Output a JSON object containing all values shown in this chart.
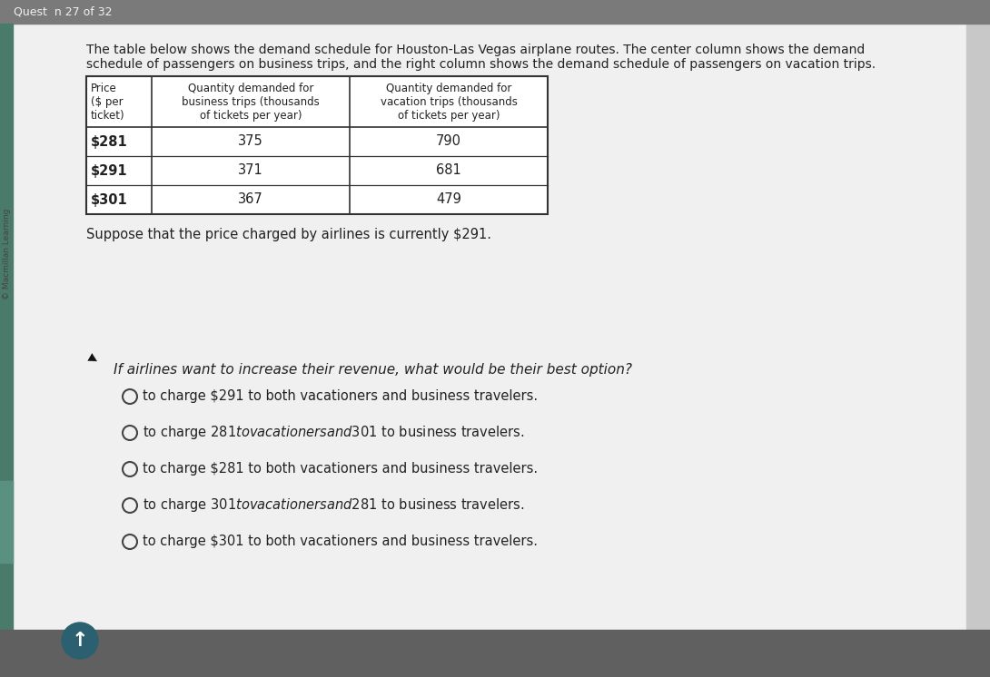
{
  "bg_outer_color": "#9a9a9a",
  "bg_content_color": "#e8e8e8",
  "white_panel_color": "#f0f0f0",
  "top_bar_color": "#7a7a7a",
  "question_num": "Quest  n 27 of 32",
  "paragraph_line1": "The table below shows the demand schedule for Houston-Las Vegas airplane routes. The center column shows the demand",
  "paragraph_line2": "schedule of passengers on business trips, and the right column shows the demand schedule of passengers on vacation trips.",
  "table_headers_col0": [
    "Price",
    "($ per",
    "ticket)"
  ],
  "table_headers_col1": [
    "Quantity demanded for",
    "business trips (thousands",
    "of tickets per year)"
  ],
  "table_headers_col2": [
    "Quantity demanded for",
    "vacation trips (thousands",
    "of tickets per year)"
  ],
  "table_rows": [
    [
      "$281",
      "375",
      "790"
    ],
    [
      "$291",
      "371",
      "681"
    ],
    [
      "$301",
      "367",
      "479"
    ]
  ],
  "suppose_text": "Suppose that the price charged by airlines is currently $291.",
  "question_text": "If airlines want to increase their revenue, what would be their best option?",
  "options": [
    "to charge $291 to both vacationers and business travelers.",
    "to charge $281 to vacationers and $301 to business travelers.",
    "to charge $281 to both vacationers and business travelers.",
    "to charge $301 to vacationers and $281 to business travelers.",
    "to charge $301 to both vacationers and business travelers."
  ],
  "table_bg": "#ffffff",
  "table_border": "#333333",
  "text_color": "#222222",
  "left_sidebar_color": "#4a7a6a",
  "teal_sidebar_color": "#5a9080",
  "bottom_bar_color": "#606060",
  "watermark_text": "© Macmillan Learning",
  "up_arrow_circle_color": "#2a6070",
  "cursor_color": "#111111"
}
